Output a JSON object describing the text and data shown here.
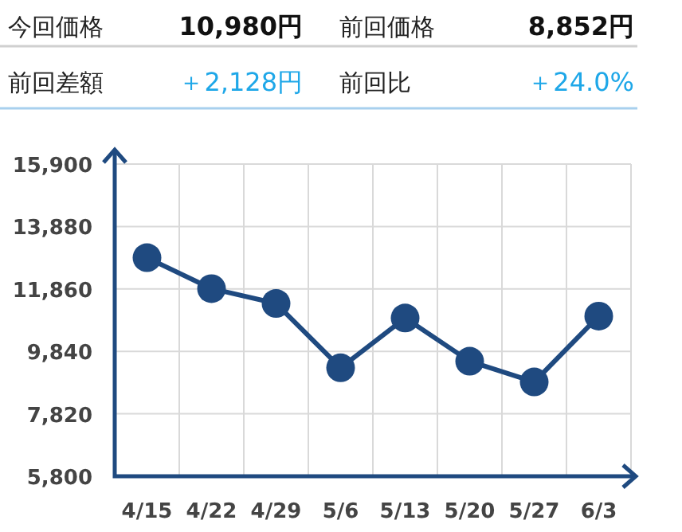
{
  "chart_data": [
    {
      "type": "other",
      "annotations": [
        "今回価格",
        "10,980円",
        "前回価格",
        "8,852円",
        "前回差額",
        "＋2,128円",
        "前回比",
        "＋24.0%"
      ]
    },
    {
      "type": "line",
      "categories": [
        "4/15",
        "4/22",
        "4/29",
        "5/6",
        "5/13",
        "5/20",
        "5/27",
        "6/3"
      ],
      "series": [
        {
          "color": "#1f4a80",
          "values": [
            12870,
            11870,
            11390,
            9310,
            10920,
            9520,
            8850,
            10980
          ]
        }
      ],
      "ylim": [
        5800,
        15900
      ],
      "yticks": [
        {
          "value": 5800,
          "label": "5,800"
        },
        {
          "value": 7820,
          "label": "7,820"
        },
        {
          "value": 9840,
          "label": "9,840"
        },
        {
          "value": 11860,
          "label": "11,860"
        },
        {
          "value": 13880,
          "label": "13,880"
        },
        {
          "value": 15900,
          "label": "15,900"
        }
      ],
      "grid": true,
      "marker": "circle",
      "line_style": "solid"
    }
  ]
}
